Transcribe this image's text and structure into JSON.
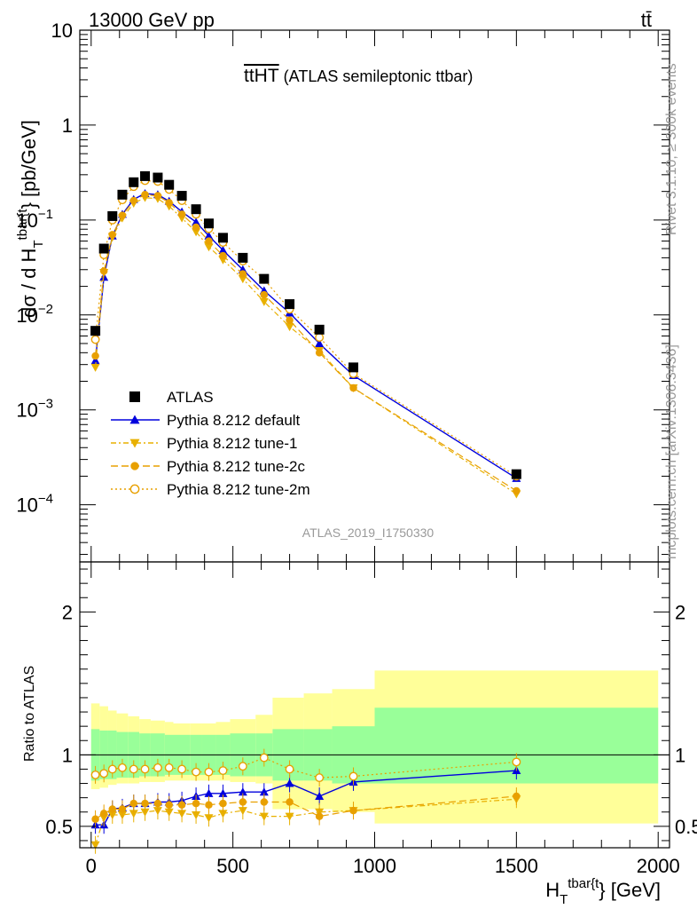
{
  "header": {
    "left": "13000 GeV pp",
    "right": "tt̄"
  },
  "side_labels": {
    "rivet": "Rivet 3.1.10, ≥ 300k events",
    "mcplots": "mcplots.cern.ch [arXiv:1306.3436]"
  },
  "analysis_id": "ATLAS_2019_I1750330",
  "chart_data": [
    {
      "type": "line",
      "panel": "main",
      "title": "t̅t̅H̅T̅ (ATLAS semileptonic ttbar)",
      "title_main": "ttHT",
      "title_suffix": " (ATLAS semileptonic ttbar)",
      "ylabel": "dσ / d H_T^{tbar{t}} [pb/GeV]",
      "ylabel_parts": [
        "dσ / d H",
        "T",
        "tbar{t",
        "} [pb/GeV]"
      ],
      "xlim": [
        -40,
        2040
      ],
      "ylim": [
        2.5e-05,
        10
      ],
      "log_y": true,
      "y_ticks": [
        {
          "value": 10,
          "label": "10"
        },
        {
          "value": 1,
          "label": "1"
        },
        {
          "value": 0.1,
          "label": "10",
          "exp": "−1"
        },
        {
          "value": 0.01,
          "label": "10",
          "exp": "−2"
        },
        {
          "value": 0.001,
          "label": "10",
          "exp": "−3"
        },
        {
          "value": 0.0001,
          "label": "10",
          "exp": "−4"
        }
      ],
      "legend_position": "lower-left",
      "series": [
        {
          "name": "ATLAS",
          "color": "#000000",
          "marker": "square",
          "line": "none",
          "x": [
            15,
            45,
            75,
            110,
            150,
            190,
            235,
            275,
            320,
            370,
            415,
            465,
            535,
            610,
            700,
            805,
            925,
            1500
          ],
          "y": [
            0.0068,
            0.05,
            0.11,
            0.185,
            0.25,
            0.29,
            0.28,
            0.235,
            0.18,
            0.13,
            0.092,
            0.065,
            0.04,
            0.024,
            0.013,
            0.007,
            0.0028,
            0.00021
          ]
        },
        {
          "name": "Pythia 8.212 default",
          "color": "#0000dd",
          "marker": "triangle-up",
          "line": "solid",
          "x": [
            15,
            45,
            75,
            110,
            150,
            190,
            235,
            275,
            320,
            370,
            415,
            465,
            535,
            610,
            700,
            805,
            925,
            1500
          ],
          "y": [
            0.0033,
            0.025,
            0.068,
            0.115,
            0.165,
            0.19,
            0.185,
            0.158,
            0.122,
            0.095,
            0.068,
            0.048,
            0.03,
            0.018,
            0.0105,
            0.005,
            0.0023,
            0.00019
          ]
        },
        {
          "name": "Pythia 8.212 tune-1",
          "color": "#e8b000",
          "marker": "triangle-down",
          "line": "dashdot",
          "x": [
            15,
            45,
            75,
            110,
            150,
            190,
            235,
            275,
            320,
            370,
            415,
            465,
            535,
            610,
            700,
            805,
            925,
            1500
          ],
          "y": [
            0.0028,
            0.028,
            0.066,
            0.105,
            0.15,
            0.172,
            0.168,
            0.14,
            0.105,
            0.075,
            0.052,
            0.038,
            0.024,
            0.0138,
            0.0075,
            0.0042,
            0.0017,
            0.00013
          ]
        },
        {
          "name": "Pythia 8.212 tune-2c",
          "color": "#e8a000",
          "marker": "circle",
          "line": "dashed",
          "x": [
            15,
            45,
            75,
            110,
            150,
            190,
            235,
            275,
            320,
            370,
            415,
            465,
            535,
            610,
            700,
            805,
            925,
            1500
          ],
          "y": [
            0.0037,
            0.029,
            0.07,
            0.112,
            0.16,
            0.185,
            0.18,
            0.152,
            0.115,
            0.084,
            0.06,
            0.042,
            0.027,
            0.0163,
            0.0088,
            0.004,
            0.0017,
            0.00014
          ]
        },
        {
          "name": "Pythia 8.212 tune-2m",
          "color": "#e8a000",
          "marker": "open-circle",
          "line": "dotted",
          "x": [
            15,
            45,
            75,
            110,
            150,
            190,
            235,
            275,
            320,
            370,
            415,
            465,
            535,
            610,
            700,
            805,
            925,
            1500
          ],
          "y": [
            0.0055,
            0.043,
            0.1,
            0.163,
            0.225,
            0.26,
            0.255,
            0.21,
            0.16,
            0.115,
            0.081,
            0.058,
            0.037,
            0.0237,
            0.0115,
            0.0058,
            0.0024,
            0.0002
          ]
        }
      ]
    },
    {
      "type": "line",
      "panel": "ratio",
      "ylabel": "Ratio to ATLAS",
      "xlabel": "H_T^{tbar{t}} [GeV]",
      "xlabel_parts": [
        "H",
        "T",
        "tbar{t",
        "} [GeV]"
      ],
      "xlim": [
        -40,
        2040
      ],
      "ylim": [
        0.35,
        2.35
      ],
      "x_ticks": [
        0,
        500,
        1000,
        1500,
        2000
      ],
      "y_ticks": [
        0.5,
        1,
        2
      ],
      "uncertainty_bands": {
        "bin_edges": [
          0,
          30,
          60,
          90,
          130,
          170,
          210,
          260,
          290,
          350,
          390,
          440,
          490,
          580,
          640,
          750,
          850,
          1000,
          2000
        ],
        "stat_syst_lo": [
          0.82,
          0.83,
          0.83,
          0.84,
          0.84,
          0.85,
          0.85,
          0.86,
          0.86,
          0.86,
          0.86,
          0.86,
          0.85,
          0.85,
          0.82,
          0.82,
          0.8,
          0.8
        ],
        "stat_syst_hi": [
          1.18,
          1.17,
          1.17,
          1.16,
          1.16,
          1.15,
          1.15,
          1.14,
          1.14,
          1.14,
          1.14,
          1.14,
          1.15,
          1.15,
          1.18,
          1.18,
          1.2,
          1.33
        ],
        "total_lo": [
          0.76,
          0.77,
          0.79,
          0.8,
          0.8,
          0.81,
          0.81,
          0.82,
          0.82,
          0.82,
          0.82,
          0.82,
          0.81,
          0.8,
          0.62,
          0.62,
          0.6,
          0.52
        ],
        "total_hi": [
          1.36,
          1.34,
          1.31,
          1.29,
          1.27,
          1.25,
          1.24,
          1.23,
          1.22,
          1.22,
          1.22,
          1.23,
          1.25,
          1.28,
          1.4,
          1.43,
          1.46,
          1.59
        ],
        "stat_color": "#99ff99",
        "total_color": "#ffff99"
      },
      "series": [
        {
          "name": "Pythia 8.212 default",
          "color": "#0000dd",
          "marker": "triangle-up",
          "line": "solid",
          "x": [
            15,
            45,
            75,
            110,
            150,
            190,
            235,
            275,
            320,
            370,
            415,
            465,
            535,
            610,
            700,
            805,
            925,
            1500
          ],
          "y": [
            0.51,
            0.51,
            0.62,
            0.63,
            0.66,
            0.66,
            0.67,
            0.67,
            0.68,
            0.71,
            0.73,
            0.73,
            0.74,
            0.74,
            0.8,
            0.71,
            0.81,
            0.89
          ]
        },
        {
          "name": "Pythia 8.212 tune-1",
          "color": "#e8b000",
          "marker": "triangle-down",
          "line": "dashdot",
          "x": [
            15,
            45,
            75,
            110,
            150,
            190,
            235,
            275,
            320,
            370,
            415,
            465,
            535,
            610,
            700,
            805,
            925,
            1500
          ],
          "y": [
            0.37,
            0.56,
            0.58,
            0.58,
            0.59,
            0.6,
            0.61,
            0.6,
            0.59,
            0.58,
            0.56,
            0.59,
            0.61,
            0.57,
            0.57,
            0.6,
            0.61,
            0.69
          ]
        },
        {
          "name": "Pythia 8.212 tune-2c",
          "color": "#e8a000",
          "marker": "circle",
          "line": "dashed",
          "x": [
            15,
            45,
            75,
            110,
            150,
            190,
            235,
            275,
            320,
            370,
            415,
            465,
            535,
            610,
            700,
            805,
            925,
            1500
          ],
          "y": [
            0.55,
            0.59,
            0.62,
            0.62,
            0.66,
            0.66,
            0.66,
            0.65,
            0.65,
            0.66,
            0.65,
            0.66,
            0.67,
            0.67,
            0.67,
            0.57,
            0.61,
            0.71
          ]
        },
        {
          "name": "Pythia 8.212 tune-2m",
          "color": "#e8a000",
          "marker": "open-circle",
          "line": "dotted",
          "x": [
            15,
            45,
            75,
            110,
            150,
            190,
            235,
            275,
            320,
            370,
            415,
            465,
            535,
            610,
            700,
            805,
            925,
            1500
          ],
          "y": [
            0.86,
            0.87,
            0.9,
            0.91,
            0.9,
            0.9,
            0.91,
            0.91,
            0.9,
            0.88,
            0.88,
            0.89,
            0.92,
            0.98,
            0.9,
            0.84,
            0.85,
            0.95
          ]
        }
      ]
    }
  ]
}
